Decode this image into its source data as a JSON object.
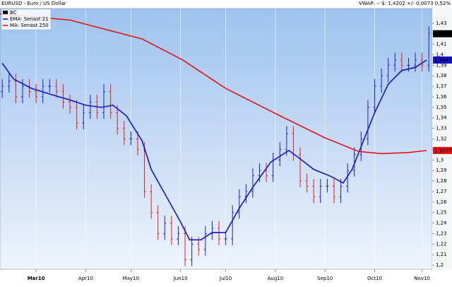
{
  "chart_data": {
    "type": "ohlc",
    "title": "EURUSD - Euro / US Dollar",
    "subtitle": "VWAP: --  $: 1,4202  +/- 0,0073  0,52%",
    "xlim": [
      0,
      191.5
    ],
    "xticks": [
      {
        "value": 16,
        "label": "Mar10"
      },
      {
        "value": 38,
        "label": "Apr10"
      },
      {
        "value": 58,
        "label": "May10"
      },
      {
        "value": 80,
        "label": "Jun10"
      },
      {
        "value": 100,
        "label": "Jul10"
      },
      {
        "value": 122,
        "label": "Aug10"
      },
      {
        "value": 144,
        "label": "Sep10"
      },
      {
        "value": 166,
        "label": "Oct10"
      },
      {
        "value": 187,
        "label": "Nov10"
      }
    ],
    "ylim": [
      1.196,
      1.444
    ],
    "yticks": [
      {
        "value": 1.2,
        "label": "1,2"
      },
      {
        "value": 1.21,
        "label": "1,21"
      },
      {
        "value": 1.22,
        "label": "1,22"
      },
      {
        "value": 1.23,
        "label": "1,23"
      },
      {
        "value": 1.24,
        "label": "1,24"
      },
      {
        "value": 1.25,
        "label": "1,25"
      },
      {
        "value": 1.26,
        "label": "1,26"
      },
      {
        "value": 1.27,
        "label": "1,27"
      },
      {
        "value": 1.28,
        "label": "1,28"
      },
      {
        "value": 1.29,
        "label": "1,29"
      },
      {
        "value": 1.3,
        "label": "1,3"
      },
      {
        "value": 1.31,
        "label": "1,31"
      },
      {
        "value": 1.32,
        "label": "1,32"
      },
      {
        "value": 1.33,
        "label": "1,33"
      },
      {
        "value": 1.34,
        "label": "1,34"
      },
      {
        "value": 1.35,
        "label": "1,35"
      },
      {
        "value": 1.36,
        "label": "1,36"
      },
      {
        "value": 1.37,
        "label": "1,37"
      },
      {
        "value": 1.38,
        "label": "1,38"
      },
      {
        "value": 1.39,
        "label": "1,39"
      },
      {
        "value": 1.4,
        "label": "1,4"
      },
      {
        "value": 1.41,
        "label": "1,41"
      },
      {
        "value": 1.42,
        "label": "1,42"
      },
      {
        "value": 1.43,
        "label": "1,43"
      }
    ],
    "grid": true,
    "ohlc": {
      "name": "BC",
      "color": "#000000",
      "up_color": "#1e1ed2",
      "down_color": "#e01e1e",
      "last_label": "1,4202",
      "x": [
        1,
        4,
        7,
        10,
        13,
        16,
        19,
        22,
        25,
        28,
        31,
        34,
        37,
        40,
        43,
        46,
        49,
        52,
        55,
        58,
        61,
        64,
        67,
        70,
        73,
        76,
        79,
        82,
        85,
        88,
        91,
        94,
        97,
        100,
        103,
        106,
        109,
        112,
        115,
        118,
        121,
        124,
        127,
        130,
        133,
        136,
        139,
        142,
        145,
        148,
        151,
        154,
        157,
        160,
        163,
        166,
        169,
        172,
        175,
        178,
        181,
        184,
        187,
        190
      ],
      "open": [
        1.365,
        1.37,
        1.375,
        1.36,
        1.37,
        1.365,
        1.36,
        1.37,
        1.37,
        1.365,
        1.355,
        1.35,
        1.335,
        1.345,
        1.355,
        1.345,
        1.365,
        1.345,
        1.33,
        1.32,
        1.32,
        1.31,
        1.27,
        1.25,
        1.23,
        1.24,
        1.225,
        1.23,
        1.205,
        1.22,
        1.215,
        1.23,
        1.235,
        1.225,
        1.225,
        1.25,
        1.265,
        1.27,
        1.285,
        1.29,
        1.285,
        1.3,
        1.31,
        1.325,
        1.305,
        1.28,
        1.275,
        1.265,
        1.275,
        1.275,
        1.265,
        1.275,
        1.29,
        1.305,
        1.32,
        1.35,
        1.37,
        1.38,
        1.39,
        1.395,
        1.39,
        1.39,
        1.395,
        1.39
      ],
      "high": [
        1.377,
        1.382,
        1.382,
        1.377,
        1.377,
        1.372,
        1.377,
        1.377,
        1.377,
        1.372,
        1.362,
        1.357,
        1.352,
        1.362,
        1.362,
        1.372,
        1.372,
        1.352,
        1.337,
        1.327,
        1.327,
        1.317,
        1.277,
        1.257,
        1.247,
        1.247,
        1.237,
        1.237,
        1.227,
        1.227,
        1.237,
        1.242,
        1.242,
        1.232,
        1.257,
        1.272,
        1.277,
        1.292,
        1.297,
        1.297,
        1.307,
        1.317,
        1.332,
        1.332,
        1.312,
        1.287,
        1.282,
        1.282,
        1.282,
        1.282,
        1.282,
        1.297,
        1.312,
        1.327,
        1.357,
        1.377,
        1.387,
        1.397,
        1.402,
        1.402,
        1.397,
        1.402,
        1.402,
        1.427
      ],
      "low": [
        1.359,
        1.364,
        1.354,
        1.354,
        1.359,
        1.354,
        1.354,
        1.364,
        1.359,
        1.349,
        1.344,
        1.329,
        1.329,
        1.339,
        1.339,
        1.339,
        1.339,
        1.324,
        1.314,
        1.314,
        1.304,
        1.264,
        1.244,
        1.224,
        1.224,
        1.219,
        1.219,
        1.199,
        1.199,
        1.209,
        1.209,
        1.224,
        1.219,
        1.219,
        1.219,
        1.244,
        1.259,
        1.264,
        1.279,
        1.279,
        1.279,
        1.294,
        1.304,
        1.299,
        1.274,
        1.269,
        1.259,
        1.259,
        1.269,
        1.259,
        1.259,
        1.269,
        1.284,
        1.299,
        1.314,
        1.344,
        1.364,
        1.374,
        1.384,
        1.384,
        1.384,
        1.384,
        1.384,
        1.384
      ],
      "close": [
        1.37,
        1.375,
        1.36,
        1.37,
        1.365,
        1.36,
        1.37,
        1.37,
        1.365,
        1.355,
        1.35,
        1.335,
        1.345,
        1.355,
        1.345,
        1.365,
        1.345,
        1.33,
        1.32,
        1.32,
        1.31,
        1.27,
        1.25,
        1.23,
        1.24,
        1.225,
        1.23,
        1.205,
        1.22,
        1.215,
        1.23,
        1.235,
        1.225,
        1.225,
        1.25,
        1.265,
        1.27,
        1.285,
        1.29,
        1.285,
        1.3,
        1.31,
        1.325,
        1.305,
        1.28,
        1.275,
        1.265,
        1.275,
        1.275,
        1.265,
        1.275,
        1.29,
        1.305,
        1.32,
        1.35,
        1.37,
        1.38,
        1.39,
        1.395,
        1.39,
        1.39,
        1.395,
        1.39,
        1.42
      ]
    },
    "lines": [
      {
        "name": "EMA: Senast 21",
        "color": "#1414c8",
        "last_label": "1,3947",
        "x": [
          1,
          6,
          14,
          23,
          31,
          38,
          45,
          50,
          56,
          63,
          67,
          73,
          80,
          84,
          89,
          94,
          100,
          106,
          112,
          120,
          128,
          133,
          139,
          147,
          152,
          156,
          161,
          166,
          172,
          178,
          184,
          189
        ],
        "values": [
          1.392,
          1.377,
          1.368,
          1.362,
          1.357,
          1.352,
          1.35,
          1.352,
          1.342,
          1.318,
          1.291,
          1.268,
          1.241,
          1.224,
          1.224,
          1.231,
          1.231,
          1.254,
          1.274,
          1.298,
          1.309,
          1.301,
          1.291,
          1.284,
          1.278,
          1.291,
          1.318,
          1.345,
          1.372,
          1.385,
          1.388,
          1.395
        ]
      },
      {
        "name": "MA: Senast 250",
        "color": "#e01414",
        "last_label": "1,3077",
        "x": [
          0,
          31,
          63,
          81,
          100,
          125,
          144,
          159,
          169,
          181,
          189
        ],
        "values": [
          1.439,
          1.433,
          1.415,
          1.395,
          1.368,
          1.341,
          1.321,
          1.308,
          1.306,
          1.307,
          1.309
        ]
      }
    ]
  }
}
